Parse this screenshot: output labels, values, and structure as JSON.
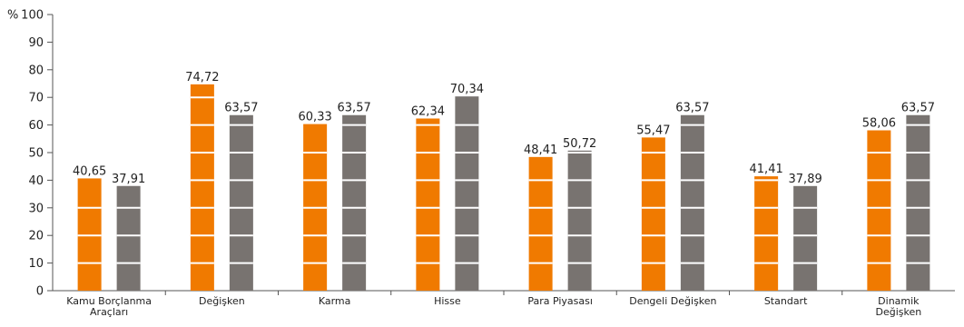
{
  "chart_data": {
    "type": "bar",
    "title": "",
    "xlabel": "",
    "ylabel": "",
    "y_unit": "%",
    "ylim": [
      0,
      100
    ],
    "yticks": [
      0,
      10,
      20,
      30,
      40,
      50,
      60,
      70,
      80,
      90,
      100
    ],
    "grid": false,
    "legend": "none",
    "value_labels": true,
    "categories": [
      "Kamu Borçlanma Araçları",
      "Değişken",
      "Karma",
      "Hisse",
      "Para Piyasası",
      "Dengeli Değişken",
      "Standart",
      "Dinamik Değişken"
    ],
    "category_label_lines": [
      [
        "Kamu Borçlanma",
        "Araçları"
      ],
      [
        "Değişken"
      ],
      [
        "Karma"
      ],
      [
        "Hisse"
      ],
      [
        "Para Piyasası"
      ],
      [
        "Dengeli Değişken"
      ],
      [
        "Standart"
      ],
      [
        "Dinamik",
        "Değişken"
      ]
    ],
    "series": [
      {
        "color": "#f07a00",
        "values": [
          40.65,
          74.72,
          60.33,
          62.34,
          48.41,
          55.47,
          41.41,
          58.06
        ],
        "labels": [
          "40,65",
          "74,72",
          "60,33",
          "62,34",
          "48,41",
          "55,47",
          "41,41",
          "58,06"
        ]
      },
      {
        "color": "#787370",
        "values": [
          37.91,
          63.57,
          63.57,
          70.34,
          50.72,
          63.57,
          37.89,
          63.57
        ],
        "labels": [
          "37,91",
          "63,57",
          "63,57",
          "70,34",
          "50,72",
          "63,57",
          "37,89",
          "63,57"
        ]
      }
    ]
  }
}
